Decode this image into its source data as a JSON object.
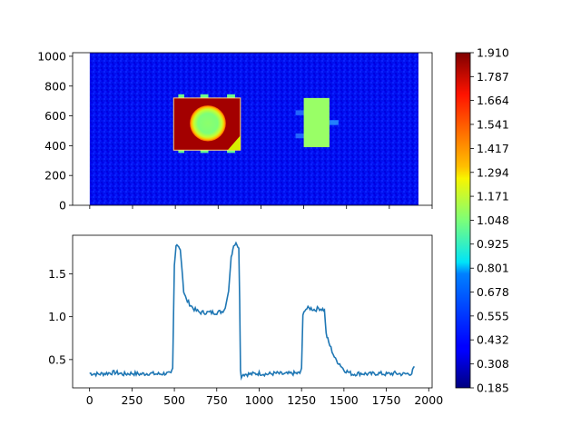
{
  "chart_data": [
    {
      "type": "heatmap",
      "title": "",
      "colormap": "jet",
      "xlim": [
        -100,
        2000
      ],
      "ylim": [
        0,
        1024
      ],
      "data_extent": {
        "x": [
          0,
          1920
        ],
        "y": [
          0,
          1024
        ]
      },
      "background_value": 0.4,
      "features": [
        {
          "name": "left-rectangle",
          "x": [
            490,
            880
          ],
          "y": [
            370,
            720
          ],
          "value": 1.85
        },
        {
          "name": "left-circle",
          "center": [
            690,
            550
          ],
          "radius": [
            105,
            120
          ],
          "value": 1.05
        },
        {
          "name": "right-rectangle",
          "x": [
            1250,
            1400
          ],
          "y": [
            390,
            720
          ],
          "value": 1.09
        }
      ],
      "yticks": [
        0,
        200,
        400,
        600,
        800,
        1000
      ],
      "ytick_labels": [
        "0",
        "200",
        "400",
        "600",
        "800",
        "1000"
      ],
      "xticks": [
        0,
        250,
        500,
        750,
        1000,
        1250,
        1500,
        1750,
        2000
      ],
      "xtick_labels_shown": false
    },
    {
      "type": "line",
      "title": "",
      "xlabel": "",
      "ylabel": "",
      "xlim": [
        -100,
        2020
      ],
      "ylim": [
        0.17,
        1.95
      ],
      "xticks": [
        0,
        250,
        500,
        750,
        1000,
        1250,
        1500,
        1750,
        2000
      ],
      "xtick_labels": [
        "0",
        "250",
        "500",
        "750",
        "1000",
        "1250",
        "1500",
        "1750",
        "2000"
      ],
      "yticks": [
        0.5,
        1.0,
        1.5
      ],
      "ytick_labels": [
        "0.5",
        "1.0",
        "1.5"
      ],
      "series": [
        {
          "name": "profile",
          "color": "#1f77b4",
          "points": [
            [
              0,
              0.34
            ],
            [
              50,
              0.33
            ],
            [
              100,
              0.34
            ],
            [
              150,
              0.35
            ],
            [
              200,
              0.33
            ],
            [
              250,
              0.34
            ],
            [
              300,
              0.33
            ],
            [
              350,
              0.34
            ],
            [
              400,
              0.33
            ],
            [
              450,
              0.34
            ],
            [
              480,
              0.33
            ],
            [
              490,
              0.4
            ],
            [
              500,
              1.6
            ],
            [
              510,
              1.82
            ],
            [
              520,
              1.85
            ],
            [
              535,
              1.78
            ],
            [
              545,
              1.55
            ],
            [
              555,
              1.3
            ],
            [
              570,
              1.2
            ],
            [
              590,
              1.15
            ],
            [
              610,
              1.1
            ],
            [
              630,
              1.07
            ],
            [
              650,
              1.05
            ],
            [
              700,
              1.05
            ],
            [
              750,
              1.05
            ],
            [
              780,
              1.06
            ],
            [
              800,
              1.1
            ],
            [
              820,
              1.3
            ],
            [
              835,
              1.7
            ],
            [
              850,
              1.84
            ],
            [
              870,
              1.85
            ],
            [
              880,
              1.8
            ],
            [
              885,
              1.2
            ],
            [
              890,
              0.4
            ],
            [
              895,
              0.28
            ],
            [
              900,
              0.33
            ],
            [
              950,
              0.33
            ],
            [
              1000,
              0.34
            ],
            [
              1050,
              0.33
            ],
            [
              1100,
              0.34
            ],
            [
              1150,
              0.33
            ],
            [
              1200,
              0.34
            ],
            [
              1240,
              0.34
            ],
            [
              1250,
              0.4
            ],
            [
              1258,
              1.0
            ],
            [
              1270,
              1.09
            ],
            [
              1300,
              1.1
            ],
            [
              1330,
              1.08
            ],
            [
              1350,
              1.1
            ],
            [
              1370,
              1.09
            ],
            [
              1385,
              1.08
            ],
            [
              1395,
              0.8
            ],
            [
              1410,
              0.7
            ],
            [
              1430,
              0.6
            ],
            [
              1450,
              0.5
            ],
            [
              1475,
              0.45
            ],
            [
              1500,
              0.38
            ],
            [
              1550,
              0.33
            ],
            [
              1600,
              0.34
            ],
            [
              1650,
              0.33
            ],
            [
              1700,
              0.34
            ],
            [
              1750,
              0.33
            ],
            [
              1800,
              0.34
            ],
            [
              1850,
              0.33
            ],
            [
              1900,
              0.34
            ],
            [
              1915,
              0.42
            ]
          ]
        }
      ]
    },
    {
      "type": "colorbar",
      "colormap": "jet",
      "range": [
        0.185,
        1.91
      ],
      "tick_values": [
        0.185,
        0.308,
        0.432,
        0.555,
        0.678,
        0.801,
        0.925,
        1.048,
        1.171,
        1.294,
        1.417,
        1.541,
        1.664,
        1.787,
        1.91
      ],
      "tick_labels": [
        "0.185",
        "0.308",
        "0.432",
        "0.555",
        "0.678",
        "0.801",
        "0.925",
        "1.048",
        "1.171",
        "1.294",
        "1.417",
        "1.541",
        "1.664",
        "1.787",
        "1.910"
      ]
    }
  ]
}
